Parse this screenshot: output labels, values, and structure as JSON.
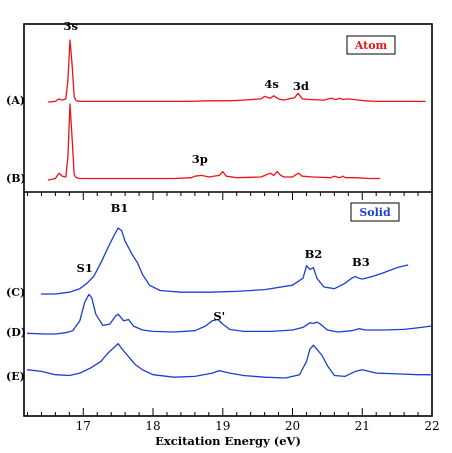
{
  "chart_data": {
    "type": "line",
    "xlabel": "Excitation Energy (eV)",
    "xlim": [
      16.15,
      22.0
    ],
    "x_ticks": [
      17,
      18,
      19,
      20,
      21,
      22
    ],
    "panels": [
      {
        "name": "Atom",
        "color": "#e8141a",
        "legend_placement": "top-right",
        "series": [
          {
            "name": "(A)",
            "x": [
              16.5,
              16.6,
              16.65,
              16.7,
              16.75,
              16.78,
              16.81,
              16.84,
              16.87,
              16.9,
              16.95,
              17.2,
              17.6,
              18.0,
              18.5,
              18.8,
              19.1,
              19.3,
              19.55,
              19.6,
              19.68,
              19.73,
              19.8,
              19.87,
              19.95,
              20.03,
              20.08,
              20.14,
              20.25,
              20.45,
              20.55,
              20.62,
              20.68,
              20.72,
              20.8,
              20.95,
              21.05,
              21.2,
              21.5,
              21.9
            ],
            "y": [
              0.0,
              0.01,
              0.05,
              0.03,
              0.05,
              0.35,
              1.0,
              0.6,
              0.08,
              0.02,
              0.01,
              0.01,
              0.01,
              0.01,
              0.01,
              0.02,
              0.02,
              0.03,
              0.05,
              0.09,
              0.06,
              0.1,
              0.05,
              0.03,
              0.05,
              0.07,
              0.14,
              0.05,
              0.04,
              0.03,
              0.06,
              0.04,
              0.06,
              0.04,
              0.05,
              0.03,
              0.02,
              0.01,
              0.01,
              0.01
            ]
          },
          {
            "name": "(B)",
            "x": [
              16.5,
              16.6,
              16.65,
              16.7,
              16.75,
              16.78,
              16.81,
              16.84,
              16.87,
              16.9,
              16.95,
              17.3,
              17.8,
              18.3,
              18.55,
              18.6,
              18.7,
              18.8,
              18.95,
              19.0,
              19.05,
              19.2,
              19.55,
              19.68,
              19.73,
              19.78,
              19.83,
              19.88,
              20.0,
              20.05,
              20.09,
              20.14,
              20.3,
              20.55,
              20.6,
              20.68,
              20.72,
              20.76,
              20.9,
              21.1,
              21.25
            ],
            "y": [
              0.0,
              0.02,
              0.09,
              0.05,
              0.04,
              0.3,
              1.0,
              0.55,
              0.07,
              0.03,
              0.02,
              0.02,
              0.02,
              0.02,
              0.03,
              0.05,
              0.06,
              0.04,
              0.06,
              0.11,
              0.05,
              0.03,
              0.04,
              0.09,
              0.06,
              0.11,
              0.06,
              0.04,
              0.04,
              0.07,
              0.09,
              0.05,
              0.04,
              0.03,
              0.05,
              0.03,
              0.05,
              0.03,
              0.03,
              0.02,
              0.02
            ]
          }
        ],
        "annotations": [
          {
            "text": "3s",
            "x": 16.82
          },
          {
            "text": "4s",
            "x": 19.7
          },
          {
            "text": "3d",
            "x": 20.12
          },
          {
            "text": "3p",
            "x": 18.67
          }
        ]
      },
      {
        "name": "Solid",
        "color": "#1a3fd6",
        "legend_placement": "top-right",
        "series": [
          {
            "name": "(C)",
            "x": [
              16.4,
              16.6,
              16.8,
              16.95,
              17.05,
              17.15,
              17.25,
              17.35,
              17.45,
              17.5,
              17.55,
              17.6,
              17.7,
              17.78,
              17.85,
              17.95,
              18.1,
              18.4,
              18.8,
              19.2,
              19.6,
              20.0,
              20.15,
              20.2,
              20.25,
              20.3,
              20.35,
              20.45,
              20.6,
              20.75,
              20.85,
              20.9,
              20.95,
              21.0,
              21.05,
              21.15,
              21.3,
              21.5,
              21.65
            ],
            "y": [
              0.0,
              0.0,
              0.02,
              0.06,
              0.12,
              0.2,
              0.35,
              0.52,
              0.68,
              0.75,
              0.72,
              0.6,
              0.45,
              0.35,
              0.22,
              0.1,
              0.04,
              0.02,
              0.02,
              0.03,
              0.05,
              0.1,
              0.18,
              0.32,
              0.28,
              0.3,
              0.18,
              0.08,
              0.06,
              0.12,
              0.18,
              0.2,
              0.18,
              0.17,
              0.18,
              0.2,
              0.24,
              0.3,
              0.33
            ]
          },
          {
            "name": "(D)",
            "x": [
              16.2,
              16.45,
              16.6,
              16.75,
              16.85,
              16.95,
              17.02,
              17.08,
              17.12,
              17.18,
              17.28,
              17.38,
              17.46,
              17.5,
              17.58,
              17.65,
              17.72,
              17.85,
              18.0,
              18.3,
              18.6,
              18.75,
              18.85,
              18.93,
              19.0,
              19.1,
              19.3,
              19.7,
              20.0,
              20.15,
              20.25,
              20.3,
              20.35,
              20.4,
              20.5,
              20.65,
              20.85,
              20.95,
              21.05,
              21.3,
              21.6,
              21.85,
              21.98
            ],
            "y": [
              0.01,
              0.0,
              0.0,
              0.02,
              0.05,
              0.2,
              0.48,
              0.6,
              0.55,
              0.3,
              0.13,
              0.15,
              0.27,
              0.3,
              0.2,
              0.22,
              0.12,
              0.06,
              0.04,
              0.03,
              0.05,
              0.12,
              0.2,
              0.22,
              0.15,
              0.07,
              0.04,
              0.04,
              0.06,
              0.1,
              0.17,
              0.16,
              0.18,
              0.15,
              0.06,
              0.03,
              0.05,
              0.08,
              0.06,
              0.06,
              0.07,
              0.1,
              0.12
            ]
          },
          {
            "name": "(E)",
            "x": [
              16.2,
              16.4,
              16.6,
              16.8,
              16.95,
              17.1,
              17.25,
              17.35,
              17.45,
              17.5,
              17.55,
              17.65,
              17.75,
              17.85,
              18.0,
              18.3,
              18.6,
              18.85,
              18.95,
              19.1,
              19.3,
              19.6,
              19.9,
              20.1,
              20.2,
              20.25,
              20.3,
              20.35,
              20.42,
              20.5,
              20.6,
              20.75,
              20.9,
              21.0,
              21.2,
              21.5,
              21.8,
              21.98
            ],
            "y": [
              0.1,
              0.08,
              0.04,
              0.03,
              0.06,
              0.12,
              0.2,
              0.3,
              0.38,
              0.42,
              0.36,
              0.26,
              0.16,
              0.1,
              0.04,
              0.01,
              0.02,
              0.06,
              0.09,
              0.06,
              0.03,
              0.01,
              0.0,
              0.04,
              0.2,
              0.35,
              0.4,
              0.35,
              0.28,
              0.15,
              0.03,
              0.02,
              0.08,
              0.1,
              0.06,
              0.05,
              0.04,
              0.04
            ]
          }
        ],
        "annotations": [
          {
            "text": "B1",
            "x": 17.52
          },
          {
            "text": "S1",
            "x": 17.02
          },
          {
            "text": "B2",
            "x": 20.3
          },
          {
            "text": "B3",
            "x": 20.98
          },
          {
            "text": "S'",
            "x": 18.95
          }
        ]
      }
    ],
    "grid": false
  }
}
